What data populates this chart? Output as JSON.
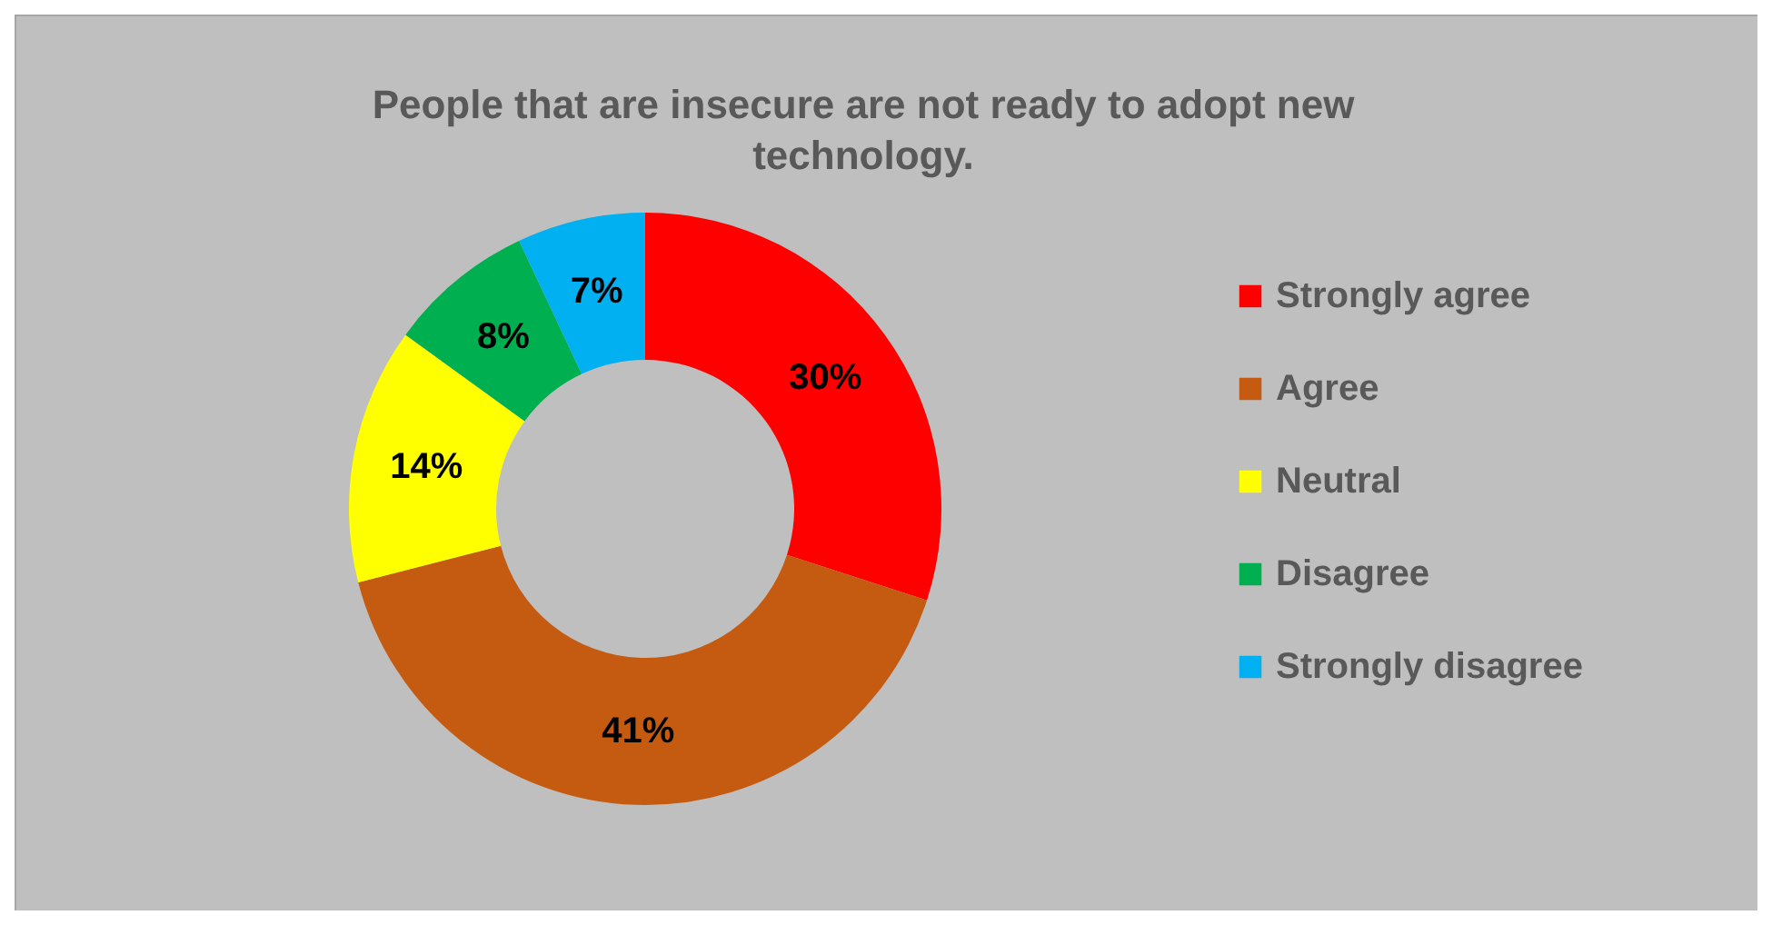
{
  "chart_data": {
    "type": "donut",
    "title": "People that are insecure are not ready to adopt new technology.",
    "categories": [
      "Strongly agree",
      "Agree",
      "Neutral",
      "Disagree",
      "Strongly disagree"
    ],
    "values": [
      30,
      41,
      14,
      8,
      7
    ],
    "colors": [
      "#ff0000",
      "#c55a11",
      "#ffff00",
      "#00b050",
      "#00b0f0"
    ],
    "value_labels": [
      "30%",
      "41%",
      "14%",
      "8%",
      "7%"
    ],
    "legend": "right"
  }
}
